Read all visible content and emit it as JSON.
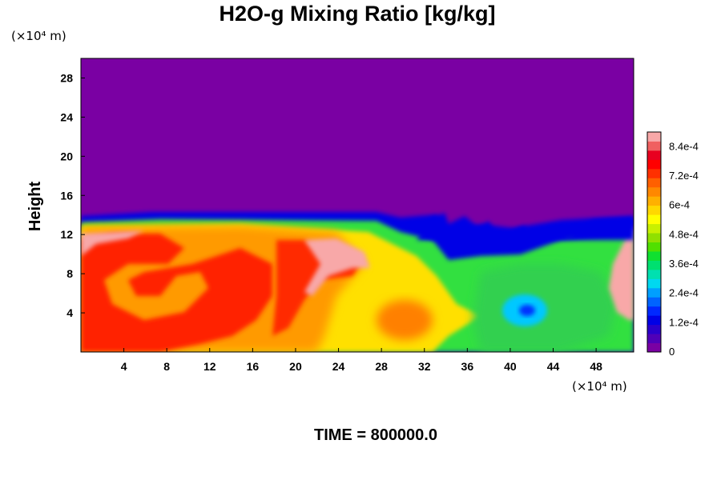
{
  "chart_data": {
    "type": "heatmap",
    "title": "H2O-g Mixing Ratio [kg/kg]",
    "ylabel": "Height",
    "y_unit": "(×10⁴ m)",
    "x_unit": "(×10⁴ m)",
    "xlim": [
      0,
      51.5
    ],
    "ylim": [
      0,
      30
    ],
    "x_ticks": [
      4,
      8,
      12,
      16,
      20,
      24,
      28,
      32,
      36,
      40,
      44,
      48
    ],
    "y_ticks": [
      4,
      8,
      12,
      16,
      20,
      24,
      28
    ],
    "x_tick_labels": [
      "4",
      "8",
      "12",
      "16",
      "20",
      "24",
      "28",
      "32",
      "36",
      "40",
      "44",
      "48"
    ],
    "y_tick_labels": [
      "4",
      "8",
      "12",
      "16",
      "20",
      "24",
      "28"
    ],
    "colorbar": {
      "range": [
        0,
        0.0009
      ],
      "tick_values": [
        0,
        0.00012,
        0.00024,
        0.00036,
        0.00048,
        0.0006,
        0.00072,
        0.00084
      ],
      "tick_labels": [
        "0",
        "1.2e-4",
        "2.4e-4",
        "3.6e-4",
        "4.8e-4",
        "6e-4",
        "7.2e-4",
        "8.4e-4"
      ],
      "colors": [
        "#7a00a3",
        "#5000b8",
        "#2a00cc",
        "#0000e6",
        "#0028ff",
        "#0064ff",
        "#00a0ff",
        "#00d8f0",
        "#00e0b0",
        "#00e070",
        "#10e030",
        "#50e000",
        "#90e000",
        "#c8f000",
        "#ffff00",
        "#ffd800",
        "#ffb000",
        "#ff8800",
        "#ff6000",
        "#ff3000",
        "#ff0000",
        "#e80020",
        "#f06060",
        "#f8a8a8"
      ]
    },
    "annotation": "TIME = 800000.0"
  }
}
